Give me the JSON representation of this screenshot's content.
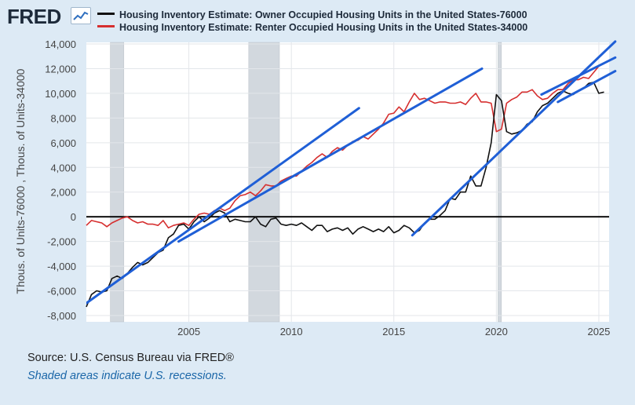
{
  "header": {
    "logo_text": "FRED",
    "logo_icon": "chart-line-icon"
  },
  "colors": {
    "owner": "#111111",
    "renter": "#d62f2f",
    "trend": "#1f5fd6",
    "recession": "#d2d8de",
    "grid": "#e3e6ea",
    "zero_line": "#000000"
  },
  "chart_data": {
    "type": "line",
    "title": "",
    "xlabel": "",
    "ylabel": "Thous. of Units-76000 , Thous. of Units-34000",
    "xlim": [
      2000.0,
      2025.5
    ],
    "ylim": [
      -8000,
      14000
    ],
    "x_ticks": [
      2005,
      2010,
      2015,
      2020,
      2025
    ],
    "x_tick_labels": [
      "2005",
      "2010",
      "2015",
      "2020",
      "2025"
    ],
    "y_ticks": [
      -8000,
      -6000,
      -4000,
      -2000,
      0,
      2000,
      4000,
      6000,
      8000,
      10000,
      12000,
      14000
    ],
    "y_tick_labels": [
      "-8,000",
      "-6,000",
      "-4,000",
      "-2,000",
      "0",
      "2,000",
      "4,000",
      "6,000",
      "8,000",
      "10,000",
      "12,000",
      "14,000"
    ],
    "grid": true,
    "legend_position": "top",
    "recessions": [
      [
        2001.17,
        2001.83
      ],
      [
        2007.92,
        2009.42
      ],
      [
        2020.08,
        2020.25
      ]
    ],
    "reference_line": {
      "y": 0
    },
    "series": [
      {
        "name": "Housing Inventory Estimate: Owner Occupied Housing Units in the United States-76000",
        "color": "#111111",
        "x": [
          2000.0,
          2000.25,
          2000.5,
          2000.75,
          2001.0,
          2001.25,
          2001.5,
          2001.75,
          2002.0,
          2002.25,
          2002.5,
          2002.75,
          2003.0,
          2003.25,
          2003.5,
          2003.75,
          2004.0,
          2004.25,
          2004.5,
          2004.75,
          2005.0,
          2005.25,
          2005.5,
          2005.75,
          2006.0,
          2006.25,
          2006.5,
          2006.75,
          2007.0,
          2007.25,
          2007.5,
          2007.75,
          2008.0,
          2008.25,
          2008.5,
          2008.75,
          2009.0,
          2009.25,
          2009.5,
          2009.75,
          2010.0,
          2010.25,
          2010.5,
          2010.75,
          2011.0,
          2011.25,
          2011.5,
          2011.75,
          2012.0,
          2012.25,
          2012.5,
          2012.75,
          2013.0,
          2013.25,
          2013.5,
          2013.75,
          2014.0,
          2014.25,
          2014.5,
          2014.75,
          2015.0,
          2015.25,
          2015.5,
          2015.75,
          2016.0,
          2016.25,
          2016.5,
          2016.75,
          2017.0,
          2017.25,
          2017.5,
          2017.75,
          2018.0,
          2018.25,
          2018.5,
          2018.75,
          2019.0,
          2019.25,
          2019.5,
          2019.75,
          2020.0,
          2020.25,
          2020.5,
          2020.75,
          2021.0,
          2021.25,
          2021.5,
          2021.75,
          2022.0,
          2022.25,
          2022.5,
          2022.75,
          2023.0,
          2023.25,
          2023.5,
          2023.75,
          2024.0,
          2024.25,
          2024.5,
          2024.75,
          2025.0,
          2025.25
        ],
        "y": [
          -7300,
          -6300,
          -6000,
          -6100,
          -6000,
          -5000,
          -4800,
          -5000,
          -4600,
          -4100,
          -3700,
          -3900,
          -3700,
          -3300,
          -2900,
          -2700,
          -1700,
          -1400,
          -700,
          -600,
          -1000,
          -400,
          0,
          -400,
          -100,
          300,
          500,
          300,
          -400,
          -200,
          -300,
          -400,
          -400,
          0,
          -600,
          -800,
          -200,
          -100,
          -600,
          -700,
          -600,
          -700,
          -500,
          -800,
          -1100,
          -700,
          -700,
          -1200,
          -1000,
          -900,
          -1100,
          -900,
          -1400,
          -1000,
          -800,
          -1000,
          -1200,
          -1000,
          -1200,
          -800,
          -1300,
          -1100,
          -700,
          -900,
          -1300,
          -1100,
          -500,
          -200,
          -200,
          100,
          500,
          1500,
          1400,
          2000,
          2000,
          3300,
          2500,
          2500,
          4000,
          6000,
          9900,
          9400,
          6900,
          6700,
          6800,
          7000,
          7500,
          7700,
          8500,
          9000,
          9200,
          9600,
          10000,
          10200,
          10000,
          9900,
          10200,
          10400,
          10800,
          10900,
          10000,
          10100
        ]
      },
      {
        "name": "Housing Inventory Estimate: Renter Occupied Housing Units in the United States-34000",
        "color": "#d62f2f",
        "x": [
          2000.0,
          2000.25,
          2000.5,
          2000.75,
          2001.0,
          2001.25,
          2001.5,
          2001.75,
          2002.0,
          2002.25,
          2002.5,
          2002.75,
          2003.0,
          2003.25,
          2003.5,
          2003.75,
          2004.0,
          2004.25,
          2004.5,
          2004.75,
          2005.0,
          2005.25,
          2005.5,
          2005.75,
          2006.0,
          2006.25,
          2006.5,
          2006.75,
          2007.0,
          2007.25,
          2007.5,
          2007.75,
          2008.0,
          2008.25,
          2008.5,
          2008.75,
          2009.0,
          2009.25,
          2009.5,
          2009.75,
          2010.0,
          2010.25,
          2010.5,
          2010.75,
          2011.0,
          2011.25,
          2011.5,
          2011.75,
          2012.0,
          2012.25,
          2012.5,
          2012.75,
          2013.0,
          2013.25,
          2013.5,
          2013.75,
          2014.0,
          2014.25,
          2014.5,
          2014.75,
          2015.0,
          2015.25,
          2015.5,
          2015.75,
          2016.0,
          2016.25,
          2016.5,
          2016.75,
          2017.0,
          2017.25,
          2017.5,
          2017.75,
          2018.0,
          2018.25,
          2018.5,
          2018.75,
          2019.0,
          2019.25,
          2019.5,
          2019.75,
          2020.0,
          2020.25,
          2020.5,
          2020.75,
          2021.0,
          2021.25,
          2021.5,
          2021.75,
          2022.0,
          2022.25,
          2022.5,
          2022.75,
          2023.0,
          2023.25,
          2023.5,
          2023.75,
          2024.0,
          2024.25,
          2024.5,
          2024.75,
          2025.0,
          2025.25
        ],
        "y": [
          -700,
          -300,
          -400,
          -500,
          -800,
          -500,
          -300,
          -100,
          0,
          -300,
          -500,
          -400,
          -600,
          -600,
          -700,
          -300,
          -900,
          -700,
          -600,
          -500,
          -700,
          -200,
          200,
          300,
          200,
          500,
          700,
          500,
          700,
          1300,
          1700,
          1800,
          2000,
          1700,
          2100,
          2600,
          2500,
          2500,
          2900,
          3100,
          3300,
          3300,
          3700,
          4100,
          4400,
          4800,
          5100,
          4800,
          5300,
          5600,
          5400,
          5800,
          6100,
          6200,
          6500,
          6300,
          6700,
          7100,
          7600,
          8300,
          8400,
          8900,
          8500,
          9300,
          10000,
          9500,
          9600,
          9400,
          9200,
          9300,
          9300,
          9200,
          9200,
          9300,
          9100,
          9600,
          10000,
          9300,
          9300,
          9200,
          6900,
          7100,
          9200,
          9500,
          9700,
          10100,
          10100,
          10300,
          9800,
          9500,
          9600,
          10000,
          10300,
          10300,
          10800,
          11100,
          11100,
          11300,
          11200,
          11700,
          12200,
          12400
        ]
      }
    ],
    "trend_lines": [
      {
        "x": [
          2000.0,
          2013.3
        ],
        "y": [
          -7000,
          8800
        ]
      },
      {
        "x": [
          2004.5,
          2019.3
        ],
        "y": [
          -2000,
          12000
        ]
      },
      {
        "x": [
          2015.9,
          2025.8
        ],
        "y": [
          -1500,
          14200
        ]
      },
      {
        "x": [
          2022.2,
          2025.8
        ],
        "y": [
          9900,
          12900
        ]
      },
      {
        "x": [
          2023.0,
          2025.8
        ],
        "y": [
          9300,
          11800
        ]
      }
    ]
  },
  "footer": {
    "source": "Source: U.S. Census Bureau via FRED®",
    "note": "Shaded areas indicate U.S. recessions."
  }
}
